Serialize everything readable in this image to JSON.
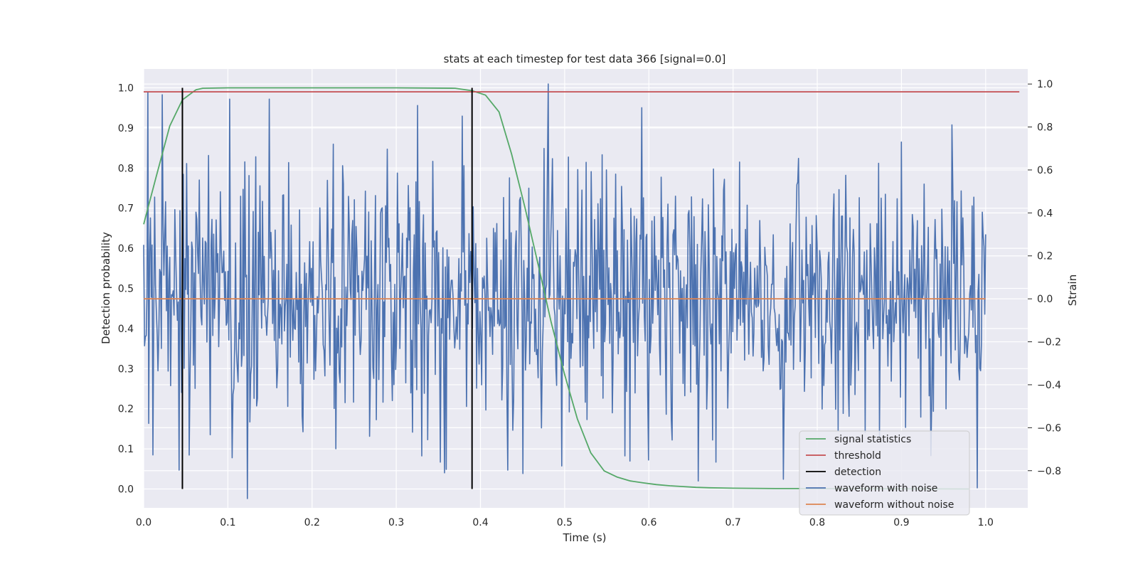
{
  "chart_data": {
    "type": "line",
    "title": "stats at each timestep for test data 366 [signal=0.0]",
    "xlabel": "Time (s)",
    "ylabel": "Detection probability",
    "ylabel_right": "Strain",
    "xlim": [
      0.0,
      1.05
    ],
    "ylim": [
      -0.047,
      1.047
    ],
    "ylim_right": [
      -0.973,
      1.07
    ],
    "x_ticks": [
      "0.0",
      "0.1",
      "0.2",
      "0.3",
      "0.4",
      "0.5",
      "0.6",
      "0.7",
      "0.8",
      "0.9",
      "1.0"
    ],
    "y_ticks": [
      "0.0",
      "0.1",
      "0.2",
      "0.3",
      "0.4",
      "0.5",
      "0.6",
      "0.7",
      "0.8",
      "0.9",
      "1.0"
    ],
    "y_ticks_right": [
      "−0.8",
      "−0.6",
      "−0.4",
      "−0.2",
      "0.0",
      "0.2",
      "0.4",
      "0.6",
      "0.8",
      "1.0"
    ],
    "grid": true,
    "legend_position": "lower-right",
    "colors": {
      "signal_statistics": "#55a868",
      "threshold": "#c44e52",
      "detection": "#000000",
      "waveform_with_noise": "#4c72b0",
      "waveform_without_noise": "#dd8452",
      "plot_background": "#eaeaf2",
      "grid": "#ffffff"
    },
    "series": [
      {
        "name": "signal statistics",
        "axis": "left",
        "x": [
          0.0,
          0.015,
          0.031,
          0.046,
          0.062,
          0.07,
          0.1,
          0.2,
          0.3,
          0.37,
          0.39,
          0.406,
          0.422,
          0.437,
          0.453,
          0.469,
          0.484,
          0.5,
          0.515,
          0.531,
          0.547,
          0.562,
          0.578,
          0.594,
          0.609,
          0.625,
          0.641,
          0.656,
          0.672,
          0.7,
          0.75,
          0.8,
          0.9,
          0.98
        ],
        "values": [
          0.66,
          0.78,
          0.905,
          0.97,
          0.995,
          0.999,
          1.0,
          1.0,
          1.0,
          0.999,
          0.993,
          0.982,
          0.94,
          0.835,
          0.7,
          0.555,
          0.415,
          0.285,
          0.175,
          0.09,
          0.045,
          0.03,
          0.02,
          0.015,
          0.011,
          0.008,
          0.006,
          0.004,
          0.003,
          0.002,
          0.001,
          0.001,
          0.0005,
          0.0
        ]
      },
      {
        "name": "threshold",
        "axis": "left",
        "x": [
          0.0,
          1.04
        ],
        "values": [
          0.99,
          0.99
        ]
      },
      {
        "name": "detection",
        "axis": "left",
        "x": [
          0.046,
          0.39
        ],
        "values": [
          1.0,
          1.0
        ]
      },
      {
        "name": "waveform with noise",
        "axis": "right",
        "x_range": [
          0.0,
          1.0
        ],
        "samples": 1000,
        "mean": 0.0,
        "std": 0.3,
        "peaks": [
          [
            0.005,
            0.96
          ],
          [
            0.006,
            -0.58
          ],
          [
            0.022,
            0.95
          ],
          [
            0.047,
            0.58
          ],
          [
            0.051,
            0.63
          ],
          [
            0.105,
            -0.74
          ],
          [
            0.225,
            0.72
          ],
          [
            0.236,
            0.62
          ],
          [
            0.268,
            -0.64
          ],
          [
            0.325,
            0.9
          ],
          [
            0.352,
            -0.76
          ],
          [
            0.357,
            -0.81
          ],
          [
            0.38,
            0.62
          ],
          [
            0.475,
            0.7
          ],
          [
            0.48,
            1.0
          ],
          [
            0.505,
            0.66
          ],
          [
            0.55,
            0.6
          ],
          [
            0.592,
            0.89
          ],
          [
            0.6,
            -0.75
          ],
          [
            0.68,
            -0.76
          ],
          [
            0.76,
            -0.84
          ],
          [
            0.874,
            -0.64
          ],
          [
            0.9,
            0.73
          ],
          [
            0.935,
            -0.73
          ],
          [
            0.96,
            0.81
          ],
          [
            0.99,
            -0.88
          ],
          [
            1.0,
            0.3
          ]
        ]
      },
      {
        "name": "waveform without noise",
        "axis": "right",
        "x": [
          0.0,
          1.0
        ],
        "values": [
          0.0,
          0.0
        ]
      }
    ]
  }
}
